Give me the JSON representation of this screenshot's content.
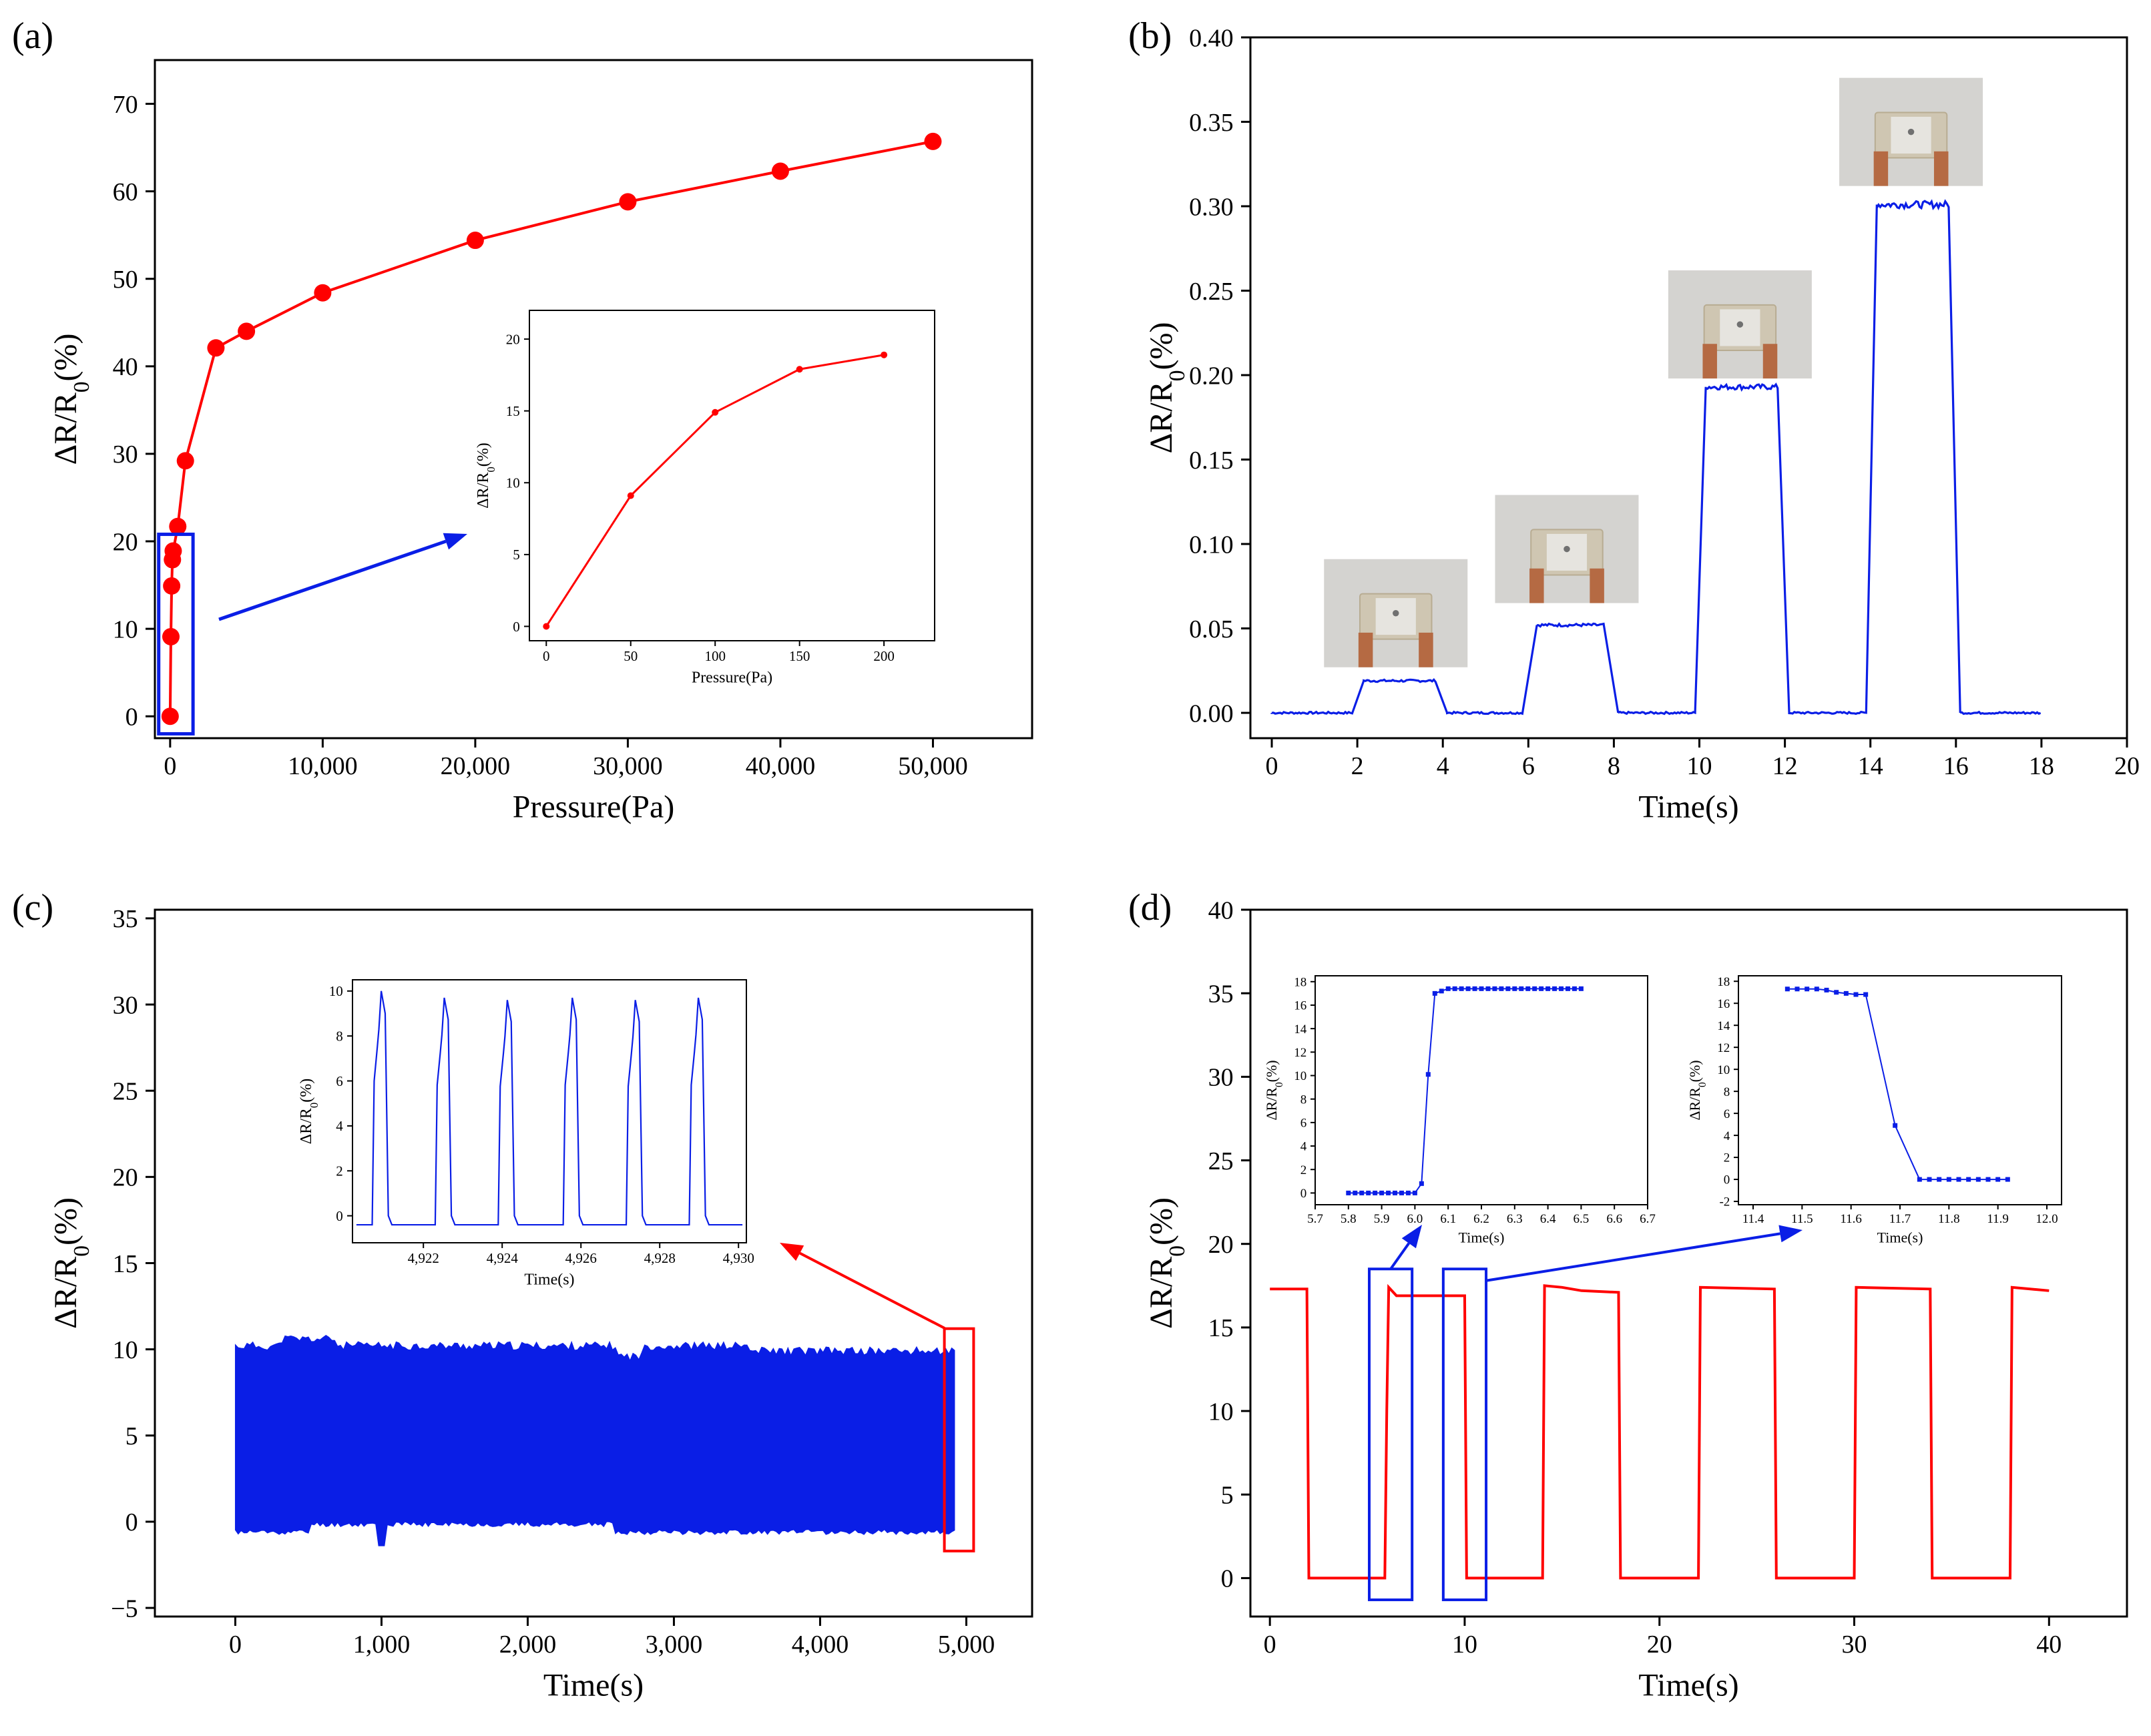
{
  "figure": {
    "panels": [
      "(a)",
      "(b)",
      "(c)",
      "(d)"
    ]
  },
  "colors": {
    "red": "#ff0000",
    "blue": "#0a1ee6",
    "black": "#000000",
    "photo_bg": "#d4d3d0",
    "photo_frame": "#cfc6b2",
    "copper": "#b56a43"
  },
  "chart_data": [
    {
      "id": "a",
      "type": "line",
      "xlabel": "Pressure(Pa)",
      "ylabel_parts": [
        "ΔR/R",
        "0",
        "(%)"
      ],
      "xlim": [
        -1000,
        56500
      ],
      "ylim": [
        -2.5,
        75
      ],
      "xticks": [
        0,
        10000,
        20000,
        30000,
        40000,
        50000
      ],
      "xtick_labels": [
        "0",
        "10,000",
        "20,000",
        "30,000",
        "40,000",
        "50,000"
      ],
      "yticks": [
        0,
        10,
        20,
        30,
        40,
        50,
        60,
        70
      ],
      "ytick_labels": [
        "0",
        "10",
        "20",
        "30",
        "40",
        "50",
        "60",
        "70"
      ],
      "series": [
        {
          "color": "#ff0000",
          "marker": "circle",
          "x": [
            0,
            50,
            100,
            150,
            200,
            500,
            1000,
            3000,
            5000,
            10000,
            20000,
            30000,
            40000,
            50000
          ],
          "y": [
            0,
            9.1,
            14.9,
            17.9,
            18.9,
            21.7,
            29.2,
            42.1,
            44.0,
            48.4,
            54.4,
            58.8,
            62.3,
            65.7
          ]
        }
      ],
      "highlight_box": {
        "x0": -750,
        "x1": 1500,
        "y0": -2,
        "y1": 20.8,
        "color": "#0a1ee6"
      },
      "inset": {
        "xlabel": "Pressure(Pa)",
        "ylabel_parts": [
          "ΔR/R",
          "0",
          "(%)"
        ],
        "xlim": [
          -10,
          230
        ],
        "ylim": [
          -1,
          22
        ],
        "xticks": [
          0,
          50,
          100,
          150,
          200
        ],
        "xtick_labels": [
          "0",
          "50",
          "100",
          "150",
          "200"
        ],
        "yticks": [
          0,
          5,
          10,
          15,
          20
        ],
        "ytick_labels": [
          "0",
          "5",
          "10",
          "15",
          "20"
        ],
        "x": [
          0,
          50,
          100,
          150,
          200
        ],
        "y": [
          0,
          9.1,
          14.9,
          17.9,
          18.9
        ]
      }
    },
    {
      "id": "b",
      "type": "line",
      "xlabel": "Time(s)",
      "ylabel_parts": [
        "ΔR/R",
        "0",
        "(%)"
      ],
      "xlim": [
        -0.5,
        20
      ],
      "ylim": [
        -0.015,
        0.4
      ],
      "xticks": [
        0,
        2,
        4,
        6,
        8,
        10,
        12,
        14,
        16,
        18,
        20
      ],
      "xtick_labels": [
        "0",
        "2",
        "4",
        "6",
        "8",
        "10",
        "12",
        "14",
        "16",
        "18",
        "20"
      ],
      "yticks": [
        0,
        0.05,
        0.1,
        0.15,
        0.2,
        0.25,
        0.3,
        0.35,
        0.4
      ],
      "ytick_labels": [
        "0.00",
        "0.05",
        "0.10",
        "0.15",
        "0.20",
        "0.25",
        "0.30",
        "0.35",
        "0.40"
      ],
      "series": [
        {
          "color": "#0a1ee6",
          "pulses": [
            {
              "rise": 1.9,
              "top_start": 2.15,
              "top_end": 3.85,
              "fall_end": 4.1,
              "level": 0.019
            },
            {
              "rise": 5.9,
              "top_start": 6.2,
              "top_end": 7.8,
              "fall_end": 8.1,
              "level": 0.052
            },
            {
              "rise": 9.9,
              "top_start": 10.15,
              "top_end": 11.85,
              "fall_end": 12.1,
              "level": 0.193
            },
            {
              "rise": 13.9,
              "top_start": 14.15,
              "top_end": 15.85,
              "fall_end": 16.1,
              "level": 0.301
            }
          ],
          "x_end": 18
        }
      ],
      "photos": [
        {
          "t_center": 2.9,
          "y_bottom": 0.027
        },
        {
          "t_center": 6.9,
          "y_bottom": 0.065
        },
        {
          "t_center": 10.95,
          "y_bottom": 0.198
        },
        {
          "t_center": 14.95,
          "y_bottom": 0.312
        }
      ]
    },
    {
      "id": "c",
      "type": "line",
      "xlabel": "Time(s)",
      "ylabel_parts": [
        "ΔR/R",
        "0",
        "(%)"
      ],
      "xlim": [
        -550,
        5450
      ],
      "ylim": [
        -5.5,
        35.5
      ],
      "xticks": [
        0,
        1000,
        2000,
        3000,
        4000,
        5000
      ],
      "xtick_labels": [
        "0",
        "1,000",
        "2,000",
        "3,000",
        "4,000",
        "5,000"
      ],
      "yticks": [
        -5,
        0,
        5,
        10,
        15,
        20,
        25,
        30,
        35
      ],
      "ytick_labels": [
        "−5",
        "0",
        "5",
        "10",
        "15",
        "20",
        "25",
        "30",
        "35"
      ],
      "series": [
        {
          "color": "#0a1ee6",
          "x_range": [
            0,
            4930
          ],
          "band_low": -0.6,
          "band_high": 10.2
        }
      ],
      "highlight_box": {
        "x0": 4850,
        "x1": 5050,
        "y0": -1.7,
        "y1": 11.2,
        "color": "#ff0000"
      },
      "inset": {
        "xlabel": "Time(s)",
        "ylabel_parts": [
          "ΔR/R",
          "0",
          "(%)"
        ],
        "xlim": [
          4920.2,
          4930.2
        ],
        "ylim": [
          -1.2,
          10.5
        ],
        "xticks": [
          4922,
          4924,
          4926,
          4928,
          4930
        ],
        "xtick_labels": [
          "4,922",
          "4,924",
          "4,926",
          "4,928",
          "4,930"
        ],
        "yticks": [
          0,
          2,
          4,
          6,
          8,
          10
        ],
        "ytick_labels": [
          "0",
          "2",
          "4",
          "6",
          "8",
          "10"
        ],
        "peaks": [
          4920.75,
          4922.35,
          4923.95,
          4925.6,
          4927.2,
          4928.8
        ],
        "peak_levels": [
          10.0,
          9.7,
          9.6,
          9.7,
          9.6,
          9.7
        ],
        "baseline": -0.4
      }
    },
    {
      "id": "d",
      "type": "line",
      "xlabel": "Time(s)",
      "ylabel_parts": [
        "ΔR/R",
        "0",
        "(%)"
      ],
      "xlim": [
        -1,
        44
      ],
      "ylim": [
        -2.3,
        40
      ],
      "xticks": [
        0,
        10,
        20,
        30,
        40
      ],
      "xtick_labels": [
        "0",
        "10",
        "20",
        "30",
        "40"
      ],
      "yticks": [
        0,
        5,
        10,
        15,
        20,
        25,
        30,
        35,
        40
      ],
      "ytick_labels": [
        "0",
        "5",
        "10",
        "15",
        "20",
        "25",
        "30",
        "35",
        "40"
      ],
      "series": [
        {
          "color": "#ff0000",
          "x": [
            0,
            1.9,
            2.0,
            5.9,
            6.0,
            6.1,
            6.5,
            10.0,
            10.1,
            14.0,
            14.1,
            15.0,
            16.0,
            17.9,
            18.0,
            22.0,
            22.1,
            25.9,
            26.0,
            30.0,
            30.1,
            33.9,
            34.0,
            38.0,
            38.1,
            40.0
          ],
          "y": [
            17.3,
            17.3,
            0,
            0,
            10,
            17.4,
            16.9,
            16.9,
            0,
            0,
            17.5,
            17.4,
            17.2,
            17.1,
            0,
            0,
            17.4,
            17.3,
            0,
            0,
            17.4,
            17.3,
            0,
            0,
            17.4,
            17.2
          ]
        }
      ],
      "boxes": [
        {
          "x0": 5.1,
          "x1": 7.3,
          "y0": -1.3,
          "y1": 18.5,
          "color": "#0a1ee6"
        },
        {
          "x0": 8.9,
          "x1": 11.1,
          "y0": -1.3,
          "y1": 18.5,
          "color": "#0a1ee6"
        }
      ],
      "insets": [
        {
          "xlabel": "Time(s)",
          "ylabel_parts": [
            "ΔR/R",
            "0",
            "(%)"
          ],
          "xlim": [
            5.7,
            6.7
          ],
          "ylim": [
            -1,
            18.5
          ],
          "xticks": [
            5.7,
            5.8,
            5.9,
            6.0,
            6.1,
            6.2,
            6.3,
            6.4,
            6.5,
            6.6,
            6.7
          ],
          "xtick_labels": [
            "5.7",
            "5.8",
            "5.9",
            "6.0",
            "6.1",
            "6.2",
            "6.3",
            "6.4",
            "6.5",
            "6.6",
            "6.7"
          ],
          "yticks": [
            0,
            2,
            4,
            6,
            8,
            10,
            12,
            14,
            16,
            18
          ],
          "ytick_labels": [
            "0",
            "2",
            "4",
            "6",
            "8",
            "10",
            "12",
            "14",
            "16",
            "18"
          ],
          "x": [
            5.8,
            5.82,
            5.84,
            5.86,
            5.88,
            5.9,
            5.92,
            5.94,
            5.96,
            5.98,
            6.0,
            6.02,
            6.04,
            6.06,
            6.08,
            6.1,
            6.12,
            6.14,
            6.16,
            6.18,
            6.2,
            6.22,
            6.24,
            6.26,
            6.28,
            6.3,
            6.32,
            6.34,
            6.36,
            6.38,
            6.4,
            6.42,
            6.44,
            6.46,
            6.48,
            6.5
          ],
          "y": [
            0,
            0,
            0,
            0,
            0,
            0,
            0,
            0,
            0,
            0,
            0,
            0.8,
            10.1,
            17.0,
            17.2,
            17.4,
            17.4,
            17.4,
            17.4,
            17.4,
            17.4,
            17.4,
            17.4,
            17.4,
            17.4,
            17.4,
            17.4,
            17.4,
            17.4,
            17.4,
            17.4,
            17.4,
            17.4,
            17.4,
            17.4,
            17.4
          ]
        },
        {
          "xlabel": "Time(s)",
          "ylabel_parts": [
            "ΔR/R",
            "0",
            "(%)"
          ],
          "xlim": [
            11.37,
            12.03
          ],
          "ylim": [
            -2.3,
            18.5
          ],
          "xticks": [
            11.4,
            11.5,
            11.6,
            11.7,
            11.8,
            11.9,
            12.0
          ],
          "xtick_labels": [
            "11.4",
            "11.5",
            "11.6",
            "11.7",
            "11.8",
            "11.9",
            "12.0"
          ],
          "yticks": [
            -2,
            0,
            2,
            4,
            6,
            8,
            10,
            12,
            14,
            16,
            18
          ],
          "ytick_labels": [
            "-2",
            "0",
            "2",
            "4",
            "6",
            "8",
            "10",
            "12",
            "14",
            "16",
            "18"
          ],
          "x": [
            11.47,
            11.49,
            11.51,
            11.53,
            11.55,
            11.57,
            11.59,
            11.61,
            11.63,
            11.69,
            11.74,
            11.76,
            11.78,
            11.8,
            11.82,
            11.84,
            11.86,
            11.88,
            11.9,
            11.92
          ],
          "y": [
            17.3,
            17.3,
            17.3,
            17.3,
            17.2,
            17.0,
            16.9,
            16.8,
            16.8,
            4.9,
            0,
            0,
            0,
            0,
            0,
            0,
            0,
            0,
            0,
            0
          ]
        }
      ]
    }
  ]
}
